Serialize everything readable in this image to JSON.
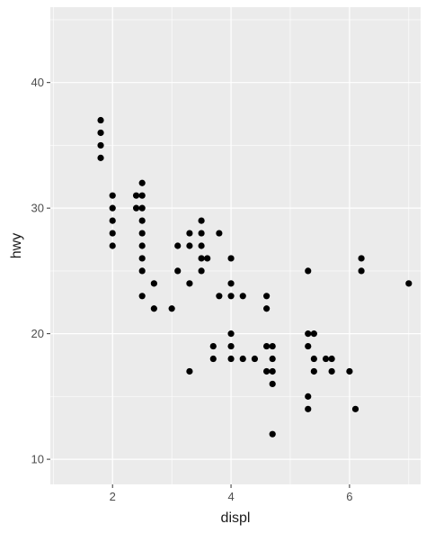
{
  "chart_data": {
    "type": "scatter",
    "xlabel": "displ",
    "ylabel": "hwy",
    "xlim": [
      0.95,
      7.2
    ],
    "ylim": [
      8.0,
      46.0
    ],
    "x_ticks": [
      2,
      4,
      6
    ],
    "x_tick_labels": [
      "2",
      "4",
      "6"
    ],
    "y_ticks": [
      10,
      20,
      30,
      40
    ],
    "y_tick_labels": [
      "10",
      "20",
      "30",
      "40"
    ],
    "x_minor": [
      1,
      3,
      5,
      7
    ],
    "y_minor": [
      15,
      25,
      35,
      45
    ],
    "grid": true,
    "panel_color": "#ebebeb",
    "grid_color": "#ffffff",
    "point_color": "#000000",
    "points": [
      {
        "x": 1.8,
        "y": 37
      },
      {
        "x": 1.8,
        "y": 36
      },
      {
        "x": 1.8,
        "y": 35
      },
      {
        "x": 1.8,
        "y": 34
      },
      {
        "x": 2.0,
        "y": 31
      },
      {
        "x": 2.0,
        "y": 30
      },
      {
        "x": 2.0,
        "y": 29
      },
      {
        "x": 2.0,
        "y": 28
      },
      {
        "x": 2.0,
        "y": 27
      },
      {
        "x": 2.4,
        "y": 31
      },
      {
        "x": 2.4,
        "y": 30
      },
      {
        "x": 2.5,
        "y": 32
      },
      {
        "x": 2.5,
        "y": 31
      },
      {
        "x": 2.5,
        "y": 30
      },
      {
        "x": 2.5,
        "y": 29
      },
      {
        "x": 2.5,
        "y": 28
      },
      {
        "x": 2.5,
        "y": 27
      },
      {
        "x": 2.5,
        "y": 26
      },
      {
        "x": 2.5,
        "y": 25
      },
      {
        "x": 2.5,
        "y": 23
      },
      {
        "x": 2.7,
        "y": 24
      },
      {
        "x": 2.7,
        "y": 22
      },
      {
        "x": 3.0,
        "y": 22
      },
      {
        "x": 3.1,
        "y": 27
      },
      {
        "x": 3.1,
        "y": 25
      },
      {
        "x": 3.3,
        "y": 28
      },
      {
        "x": 3.3,
        "y": 27
      },
      {
        "x": 3.3,
        "y": 24
      },
      {
        "x": 3.3,
        "y": 17
      },
      {
        "x": 3.5,
        "y": 29
      },
      {
        "x": 3.5,
        "y": 28
      },
      {
        "x": 3.5,
        "y": 27
      },
      {
        "x": 3.5,
        "y": 26
      },
      {
        "x": 3.5,
        "y": 25
      },
      {
        "x": 3.6,
        "y": 26
      },
      {
        "x": 3.7,
        "y": 19
      },
      {
        "x": 3.7,
        "y": 18
      },
      {
        "x": 3.8,
        "y": 28
      },
      {
        "x": 3.8,
        "y": 23
      },
      {
        "x": 4.0,
        "y": 26
      },
      {
        "x": 4.0,
        "y": 24
      },
      {
        "x": 4.0,
        "y": 23
      },
      {
        "x": 4.0,
        "y": 20
      },
      {
        "x": 4.0,
        "y": 19
      },
      {
        "x": 4.0,
        "y": 18
      },
      {
        "x": 4.2,
        "y": 23
      },
      {
        "x": 4.2,
        "y": 18
      },
      {
        "x": 4.4,
        "y": 18
      },
      {
        "x": 4.6,
        "y": 23
      },
      {
        "x": 4.6,
        "y": 22
      },
      {
        "x": 4.6,
        "y": 19
      },
      {
        "x": 4.6,
        "y": 17
      },
      {
        "x": 4.7,
        "y": 19
      },
      {
        "x": 4.7,
        "y": 18
      },
      {
        "x": 4.7,
        "y": 17
      },
      {
        "x": 4.7,
        "y": 16
      },
      {
        "x": 4.7,
        "y": 12
      },
      {
        "x": 5.3,
        "y": 25
      },
      {
        "x": 5.3,
        "y": 20
      },
      {
        "x": 5.3,
        "y": 19
      },
      {
        "x": 5.3,
        "y": 15
      },
      {
        "x": 5.3,
        "y": 14
      },
      {
        "x": 5.4,
        "y": 20
      },
      {
        "x": 5.4,
        "y": 18
      },
      {
        "x": 5.4,
        "y": 17
      },
      {
        "x": 5.6,
        "y": 18
      },
      {
        "x": 5.7,
        "y": 18
      },
      {
        "x": 5.7,
        "y": 17
      },
      {
        "x": 6.0,
        "y": 17
      },
      {
        "x": 6.1,
        "y": 14
      },
      {
        "x": 6.2,
        "y": 26
      },
      {
        "x": 6.2,
        "y": 25
      },
      {
        "x": 7.0,
        "y": 24
      }
    ]
  }
}
